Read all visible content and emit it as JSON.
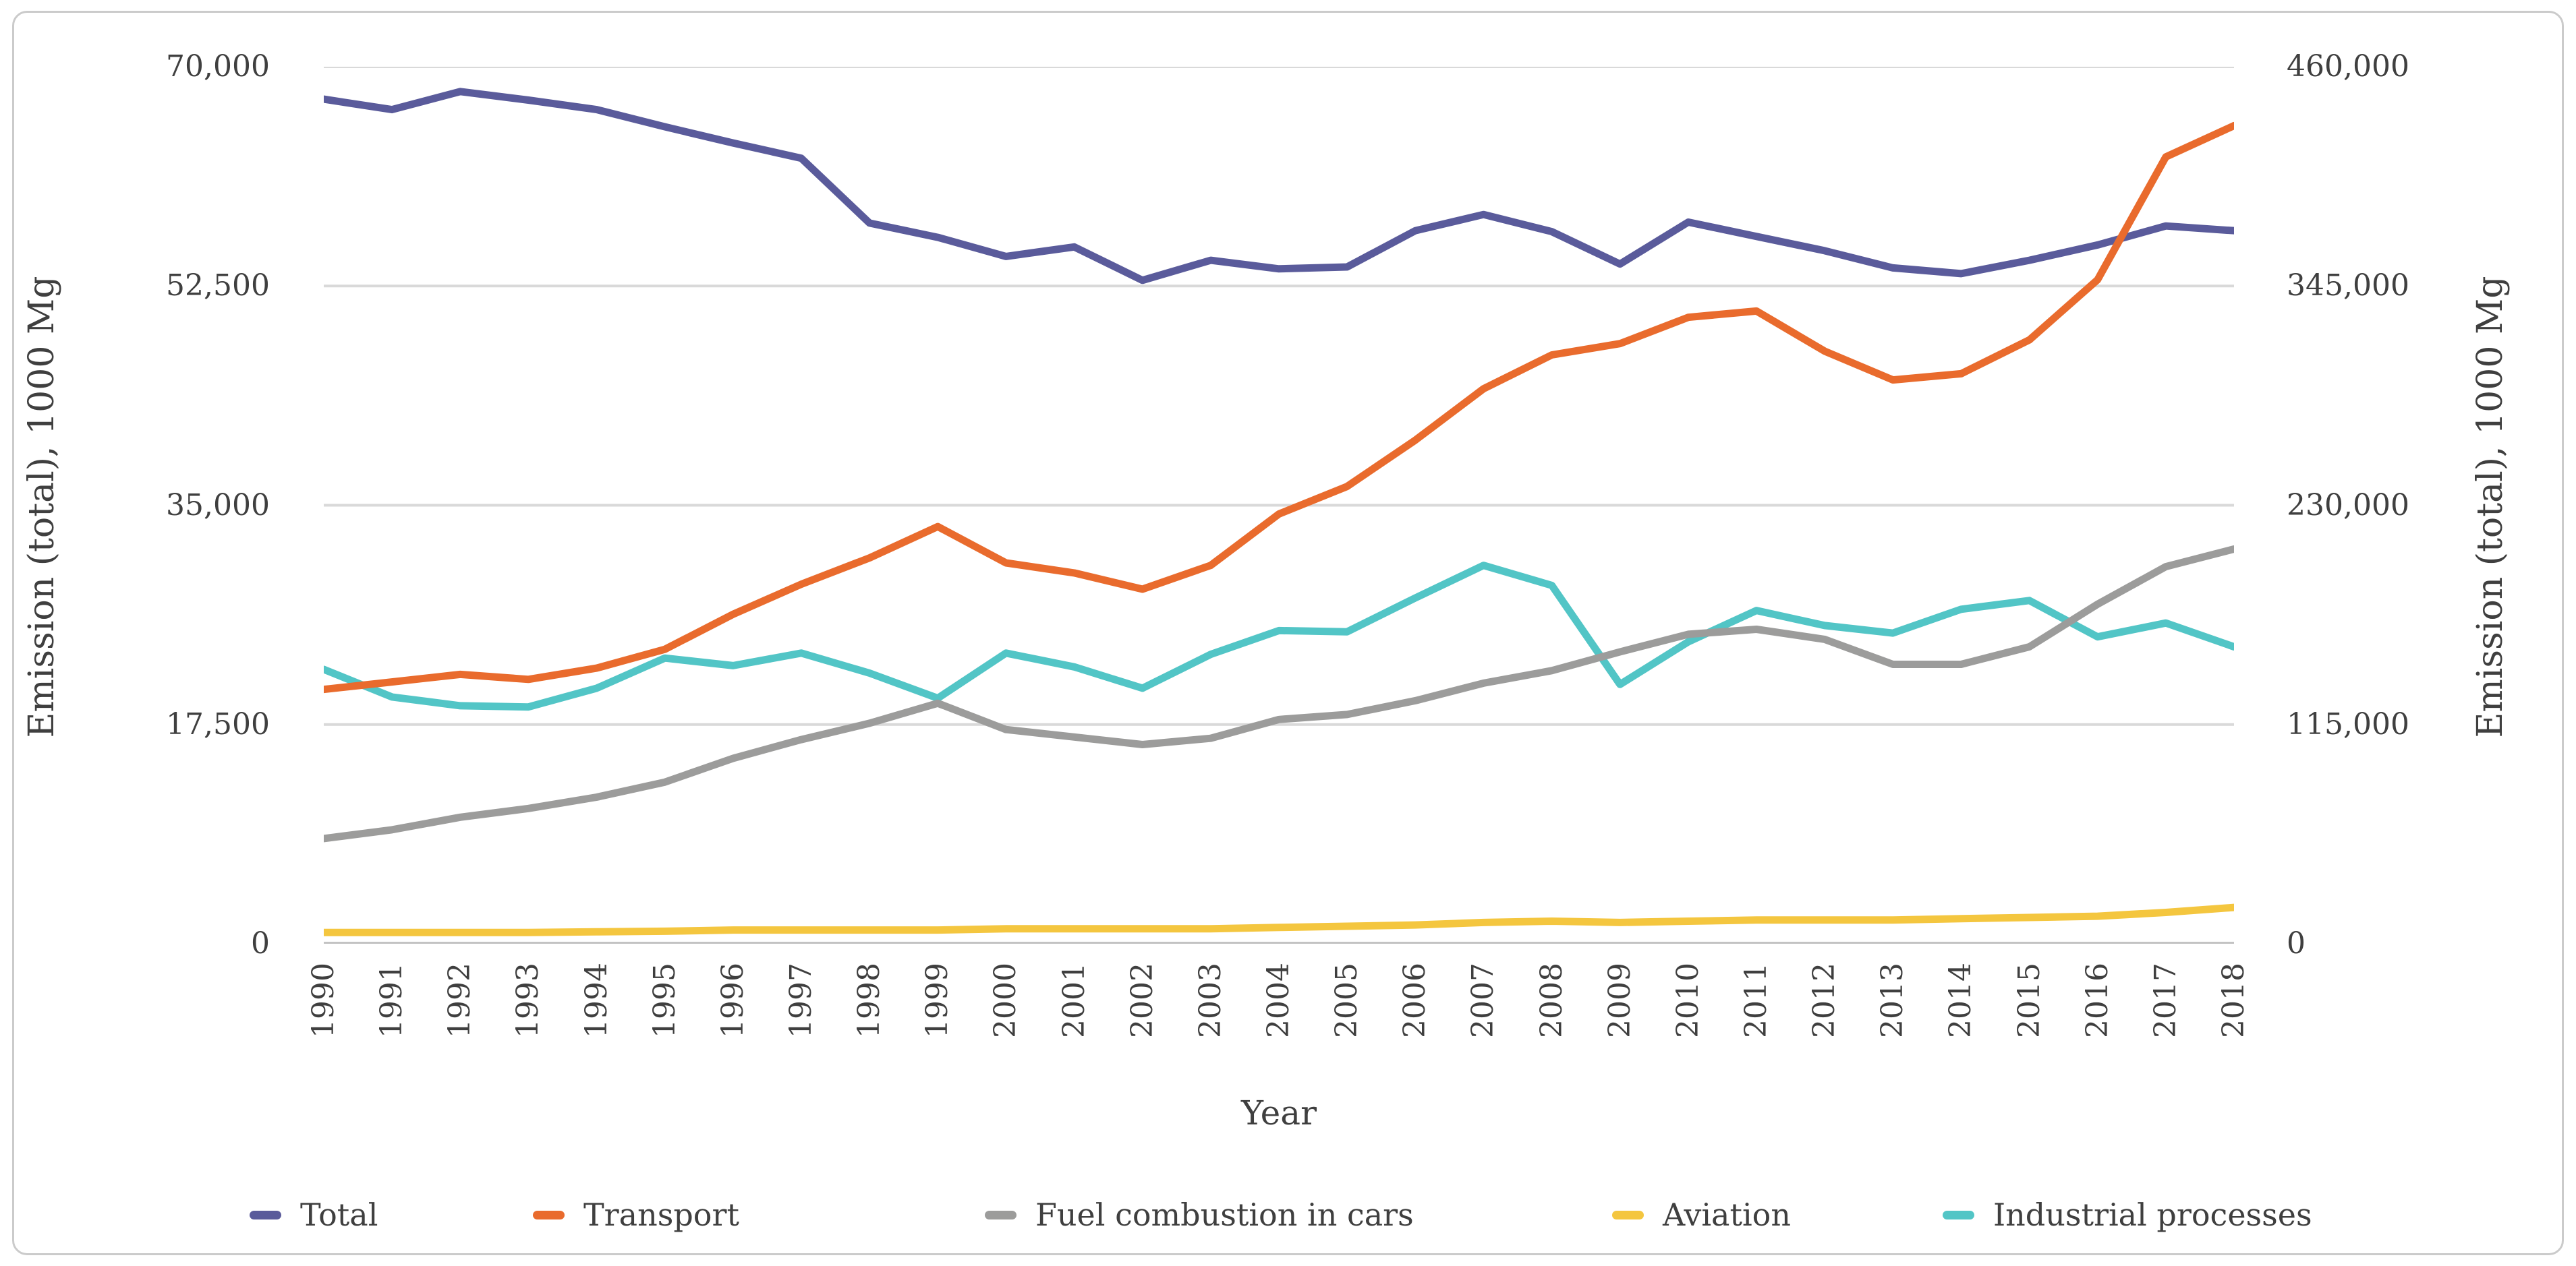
{
  "chart_data": {
    "type": "line",
    "title": "",
    "xlabel": "Year",
    "x": [
      1990,
      1991,
      1992,
      1993,
      1994,
      1995,
      1996,
      1997,
      1998,
      1999,
      2000,
      2001,
      2002,
      2003,
      2004,
      2005,
      2006,
      2007,
      2008,
      2009,
      2010,
      2011,
      2012,
      2013,
      2014,
      2015,
      2016,
      2017,
      2018
    ],
    "axes": {
      "left": {
        "title": "Emission (total), 1000 Mg",
        "range": [
          0,
          70000
        ],
        "ticks": [
          {
            "v": 0,
            "label": "0"
          },
          {
            "v": 17500,
            "label": "17,500"
          },
          {
            "v": 35000,
            "label": "35,000"
          },
          {
            "v": 52500,
            "label": "52,500"
          },
          {
            "v": 70000,
            "label": "70,000"
          }
        ]
      },
      "right": {
        "title": "Emission (total), 1000 Mg",
        "range": [
          0,
          460000
        ],
        "ticks": [
          {
            "v": 0,
            "label": "0"
          },
          {
            "v": 115000,
            "label": "115,000"
          },
          {
            "v": 230000,
            "label": "230,000"
          },
          {
            "v": 345000,
            "label": "345,000"
          },
          {
            "v": 460000,
            "label": "460,000"
          }
        ]
      }
    },
    "grid": true,
    "legend_position": "bottom",
    "colors": {
      "grid": "#d9d9d9",
      "axis_line": "#c3c3c3",
      "text": "#3f3f3f"
    },
    "series": [
      {
        "name": "Total",
        "color": "#5a5b9b",
        "axis": "right",
        "values": [
          443000,
          437500,
          447000,
          442500,
          437500,
          428500,
          420000,
          412000,
          378000,
          370500,
          360500,
          365500,
          348000,
          358500,
          354000,
          355000,
          374000,
          382500,
          373500,
          356500,
          378500,
          371000,
          363500,
          354500,
          351500,
          358500,
          366500,
          376500,
          374000
        ]
      },
      {
        "name": "Transport",
        "color": "#e96b2d",
        "axis": "left",
        "values": [
          20300,
          20900,
          21500,
          21100,
          22000,
          23500,
          26300,
          28700,
          30800,
          33300,
          30400,
          29600,
          28300,
          30200,
          34300,
          36500,
          40200,
          44300,
          47000,
          47900,
          50000,
          50500,
          47300,
          45000,
          45500,
          48200,
          53000,
          62800,
          65300
        ]
      },
      {
        "name": "Fuel combustion in cars",
        "color": "#9c9c9b",
        "axis": "left",
        "values": [
          8400,
          9100,
          10100,
          10800,
          11700,
          12900,
          14800,
          16300,
          17600,
          19200,
          17100,
          16500,
          15900,
          16400,
          17900,
          18300,
          19400,
          20800,
          21800,
          23300,
          24700,
          25100,
          24300,
          22300,
          22300,
          23700,
          27100,
          30100,
          31500
        ]
      },
      {
        "name": "Aviation",
        "color": "#f4c63f",
        "axis": "left",
        "values": [
          900,
          900,
          900,
          900,
          950,
          1000,
          1100,
          1100,
          1100,
          1100,
          1200,
          1200,
          1200,
          1200,
          1300,
          1400,
          1500,
          1700,
          1800,
          1700,
          1800,
          1900,
          1900,
          1900,
          2000,
          2100,
          2200,
          2500,
          2900
        ]
      },
      {
        "name": "Industrial processes",
        "color": "#52c5c6",
        "axis": "left",
        "values": [
          21900,
          19700,
          19000,
          18900,
          20400,
          22800,
          22200,
          23200,
          21600,
          19600,
          23200,
          22100,
          20400,
          23100,
          25000,
          24900,
          27600,
          30200,
          28600,
          20700,
          24100,
          26600,
          25400,
          24800,
          26700,
          27400,
          24500,
          25600,
          23700
        ]
      }
    ]
  }
}
